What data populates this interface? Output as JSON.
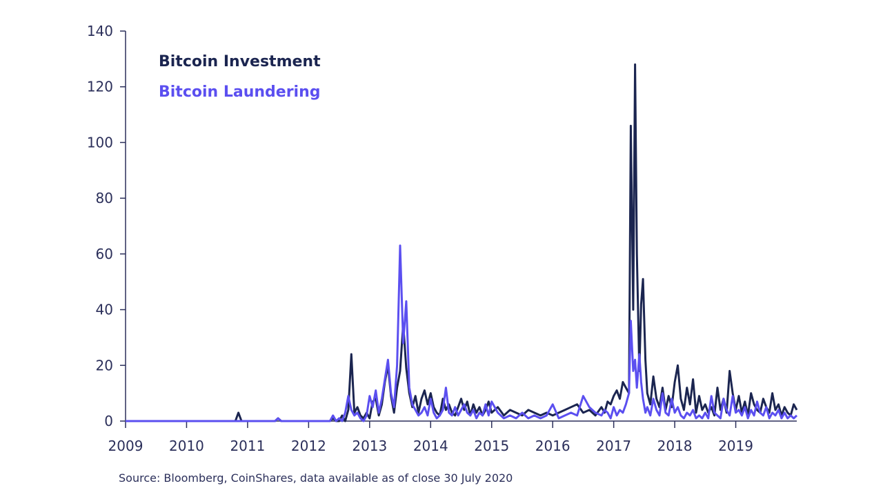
{
  "source_note": "Source: Bloomberg, CoinShares, data available as of close 30 July 2020",
  "colors": {
    "investment": "#1b2550",
    "laundering": "#5b4ff0",
    "axis": "#2b2f5a"
  },
  "chart_data": {
    "type": "line",
    "x_ticks": [
      "2009",
      "2010",
      "2011",
      "2012",
      "2013",
      "2014",
      "2015",
      "2016",
      "2017",
      "2018",
      "2019"
    ],
    "xlim": [
      2009,
      2020
    ],
    "ylim": [
      0,
      140
    ],
    "y_ticks": [
      0,
      20,
      40,
      60,
      80,
      100,
      120,
      140
    ],
    "legend_position": "top-left",
    "series": [
      {
        "name": "Bitcoin Investment",
        "color": "#1b2550",
        "x": [
          2009.0,
          2010.8,
          2010.85,
          2010.9,
          2011.45,
          2011.5,
          2011.55,
          2012.35,
          2012.4,
          2012.45,
          2012.5,
          2012.55,
          2012.6,
          2012.65,
          2012.7,
          2012.75,
          2012.8,
          2012.85,
          2012.9,
          2012.95,
          2013.0,
          2013.05,
          2013.1,
          2013.15,
          2013.2,
          2013.25,
          2013.3,
          2013.35,
          2013.4,
          2013.45,
          2013.5,
          2013.55,
          2013.6,
          2013.65,
          2013.7,
          2013.75,
          2013.8,
          2013.85,
          2013.9,
          2013.95,
          2014.0,
          2014.05,
          2014.1,
          2014.15,
          2014.2,
          2014.25,
          2014.3,
          2014.35,
          2014.4,
          2014.45,
          2014.5,
          2014.55,
          2014.6,
          2014.65,
          2014.7,
          2014.75,
          2014.8,
          2014.85,
          2014.9,
          2014.95,
          2015.0,
          2015.1,
          2015.2,
          2015.3,
          2015.4,
          2015.5,
          2015.6,
          2015.7,
          2015.8,
          2015.9,
          2016.0,
          2016.1,
          2016.2,
          2016.3,
          2016.4,
          2016.5,
          2016.6,
          2016.7,
          2016.8,
          2016.85,
          2016.9,
          2016.95,
          2017.0,
          2017.05,
          2017.1,
          2017.15,
          2017.2,
          2017.25,
          2017.28,
          2017.32,
          2017.35,
          2017.38,
          2017.42,
          2017.45,
          2017.48,
          2017.52,
          2017.55,
          2017.6,
          2017.65,
          2017.7,
          2017.75,
          2017.8,
          2017.85,
          2017.9,
          2017.95,
          2018.0,
          2018.05,
          2018.1,
          2018.15,
          2018.2,
          2018.25,
          2018.3,
          2018.35,
          2018.4,
          2018.45,
          2018.5,
          2018.55,
          2018.6,
          2018.65,
          2018.7,
          2018.75,
          2018.8,
          2018.85,
          2018.9,
          2018.95,
          2019.0,
          2019.05,
          2019.1,
          2019.15,
          2019.2,
          2019.25,
          2019.3,
          2019.35,
          2019.4,
          2019.45,
          2019.5,
          2019.55,
          2019.6,
          2019.65,
          2019.7,
          2019.75,
          2019.8,
          2019.85,
          2019.9,
          2019.95,
          2020.0
        ],
        "values": [
          0,
          0,
          3,
          0,
          0,
          1,
          0,
          0,
          1,
          0,
          0,
          2,
          0,
          4,
          24,
          3,
          5,
          2,
          1,
          3,
          1,
          7,
          8,
          2,
          6,
          14,
          20,
          9,
          3,
          12,
          18,
          35,
          19,
          10,
          5,
          9,
          3,
          8,
          11,
          6,
          10,
          5,
          3,
          2,
          8,
          4,
          6,
          3,
          2,
          5,
          8,
          4,
          7,
          2,
          6,
          3,
          5,
          2,
          4,
          7,
          3,
          5,
          2,
          4,
          3,
          2,
          4,
          3,
          2,
          3,
          2,
          3,
          4,
          5,
          6,
          3,
          4,
          2,
          5,
          3,
          7,
          6,
          9,
          11,
          8,
          14,
          12,
          10,
          106,
          40,
          128,
          60,
          18,
          42,
          51,
          22,
          10,
          6,
          16,
          8,
          5,
          12,
          4,
          9,
          5,
          14,
          20,
          8,
          4,
          12,
          6,
          15,
          3,
          9,
          4,
          6,
          3,
          5,
          2,
          12,
          4,
          8,
          3,
          18,
          10,
          4,
          9,
          3,
          7,
          2,
          10,
          6,
          4,
          3,
          8,
          5,
          3,
          10,
          4,
          6,
          2,
          5,
          3,
          2,
          6,
          4
        ]
      },
      {
        "name": "Bitcoin Laundering",
        "color": "#5b4ff0",
        "x": [
          2009.0,
          2010.8,
          2010.85,
          2010.9,
          2011.45,
          2011.5,
          2011.55,
          2012.35,
          2012.4,
          2012.45,
          2012.5,
          2012.55,
          2012.6,
          2012.65,
          2012.7,
          2012.75,
          2012.8,
          2012.85,
          2012.9,
          2012.95,
          2013.0,
          2013.05,
          2013.1,
          2013.15,
          2013.2,
          2013.25,
          2013.3,
          2013.35,
          2013.4,
          2013.45,
          2013.5,
          2013.55,
          2013.6,
          2013.65,
          2013.7,
          2013.75,
          2013.8,
          2013.85,
          2013.9,
          2013.95,
          2014.0,
          2014.05,
          2014.1,
          2014.15,
          2014.2,
          2014.25,
          2014.3,
          2014.35,
          2014.4,
          2014.45,
          2014.5,
          2014.55,
          2014.6,
          2014.65,
          2014.7,
          2014.75,
          2014.8,
          2014.85,
          2014.9,
          2014.95,
          2015.0,
          2015.1,
          2015.2,
          2015.3,
          2015.4,
          2015.5,
          2015.6,
          2015.7,
          2015.8,
          2015.9,
          2016.0,
          2016.1,
          2016.2,
          2016.3,
          2016.4,
          2016.5,
          2016.6,
          2016.7,
          2016.8,
          2016.85,
          2016.9,
          2016.95,
          2017.0,
          2017.05,
          2017.1,
          2017.15,
          2017.2,
          2017.25,
          2017.28,
          2017.32,
          2017.35,
          2017.38,
          2017.42,
          2017.45,
          2017.48,
          2017.52,
          2017.55,
          2017.6,
          2017.65,
          2017.7,
          2017.75,
          2017.8,
          2017.85,
          2017.9,
          2017.95,
          2018.0,
          2018.05,
          2018.1,
          2018.15,
          2018.2,
          2018.25,
          2018.3,
          2018.35,
          2018.4,
          2018.45,
          2018.5,
          2018.55,
          2018.6,
          2018.65,
          2018.7,
          2018.75,
          2018.8,
          2018.85,
          2018.9,
          2018.95,
          2019.0,
          2019.05,
          2019.1,
          2019.15,
          2019.2,
          2019.25,
          2019.3,
          2019.35,
          2019.4,
          2019.45,
          2019.5,
          2019.55,
          2019.6,
          2019.65,
          2019.7,
          2019.75,
          2019.8,
          2019.85,
          2019.9,
          2019.95,
          2020.0
        ],
        "values": [
          0,
          0,
          0,
          0,
          0,
          1,
          0,
          0,
          2,
          0,
          1,
          0,
          3,
          9,
          4,
          2,
          3,
          1,
          0,
          2,
          9,
          5,
          11,
          3,
          8,
          15,
          22,
          10,
          5,
          20,
          63,
          28,
          43,
          12,
          6,
          4,
          2,
          3,
          5,
          2,
          8,
          3,
          1,
          2,
          4,
          12,
          3,
          2,
          5,
          2,
          4,
          6,
          3,
          2,
          4,
          1,
          3,
          2,
          6,
          2,
          7,
          3,
          1,
          2,
          1,
          3,
          1,
          2,
          1,
          2,
          6,
          1,
          2,
          3,
          2,
          9,
          5,
          3,
          2,
          4,
          3,
          1,
          5,
          2,
          4,
          3,
          6,
          10,
          36,
          18,
          22,
          12,
          24,
          14,
          8,
          3,
          5,
          2,
          8,
          4,
          2,
          10,
          3,
          2,
          8,
          3,
          5,
          2,
          1,
          3,
          2,
          4,
          1,
          2,
          1,
          3,
          1,
          9,
          3,
          2,
          1,
          8,
          4,
          2,
          9,
          3,
          4,
          2,
          5,
          1,
          4,
          2,
          7,
          3,
          2,
          5,
          1,
          3,
          2,
          4,
          1,
          3,
          1,
          2,
          1,
          2
        ]
      }
    ]
  }
}
